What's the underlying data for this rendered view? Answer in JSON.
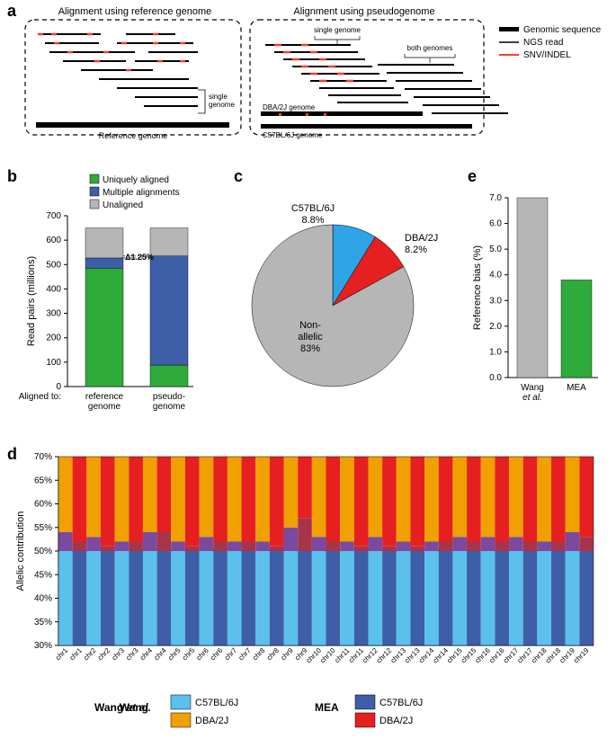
{
  "panel_a": {
    "label": "a",
    "left_title": "Alignment using reference genome",
    "right_title": "Alignment using pseudogenome",
    "ref_label": "Reference genome",
    "single_label": "single genome",
    "both_label": "both genomes",
    "dba_label": "DBA/2J genome",
    "c57_label": "C57BL/6J genome",
    "legend": [
      {
        "color": "#000000",
        "label": "Genomic sequence"
      },
      {
        "color": "#000000",
        "label": "NGS read"
      },
      {
        "color": "#ff3b30",
        "label": "SNV/INDEL"
      }
    ]
  },
  "panel_b": {
    "label": "b",
    "legend": [
      {
        "color": "#2eab3b",
        "label": "Uniquely aligned"
      },
      {
        "color": "#3e5ea8",
        "label": "Multiple alignments"
      },
      {
        "color": "#b6b6b6",
        "label": "Unaligned"
      }
    ],
    "y_label": "Read pairs (millions)",
    "x_label": "Aligned to:",
    "y_max": 700,
    "y_tick": 100,
    "delta_label": "Δ1.25%",
    "bars": [
      {
        "name": "reference\ngenome",
        "segments": [
          {
            "color": "#2eab3b",
            "v": 485
          },
          {
            "color": "#3e5ea8",
            "v": 42
          },
          {
            "color": "#b6b6b6",
            "v": 123
          }
        ]
      },
      {
        "name": "pseudo-\ngenome",
        "segments": [
          {
            "color": "#2eab3b",
            "v": 88
          },
          {
            "color": "#3e5ea8",
            "v": 447
          },
          {
            "color": "#b6b6b6",
            "v": 115
          }
        ]
      }
    ]
  },
  "panel_c": {
    "label": "c",
    "slices": [
      {
        "label": "C57BL/6J",
        "pct": 8.8,
        "color": "#2ea3e6"
      },
      {
        "label": "DBA/2J",
        "pct": 8.2,
        "color": "#e62020"
      },
      {
        "label": "Non-\nallelic",
        "pct": 83.0,
        "color": "#b6b6b6"
      }
    ]
  },
  "panel_d": {
    "label": "d",
    "y_label": "Allelic contribution",
    "y_min": 30,
    "y_max": 70,
    "y_tick": 5,
    "chrs": [
      "chr1",
      "chr1",
      "chr2",
      "chr2",
      "chr3",
      "chr3",
      "chr4",
      "chr4",
      "chr5",
      "chr5",
      "chr6",
      "chr6",
      "chr7",
      "chr7",
      "chr8",
      "chr8",
      "chr9",
      "chr9",
      "chr10",
      "chr10",
      "chr11",
      "chr11",
      "chr12",
      "chr12",
      "chr13",
      "chr13",
      "chr14",
      "chr14",
      "chr15",
      "chr15",
      "chr16",
      "chr16",
      "chr17",
      "chr17",
      "chr18",
      "chr18",
      "chr19",
      "chr19"
    ],
    "wang_c57": "#5bc0eb",
    "wang_dba": "#f0a000",
    "mea_c57": "#3e5ea8",
    "mea_dba": "#e62020",
    "wang_mix": "#7b4aa0",
    "mea_mix": "#a8344a",
    "values_top": [
      54,
      52,
      53,
      51,
      52,
      52,
      54,
      54,
      52,
      51,
      53,
      52,
      52,
      52,
      52,
      51,
      55,
      57,
      53,
      52,
      52,
      51,
      53,
      51,
      52,
      51,
      52,
      52,
      53,
      52,
      53,
      52,
      53,
      52,
      52,
      52,
      54,
      53
    ],
    "legend_wang_label": "Wang et al.",
    "legend_mea_label": "MEA",
    "legend_wang": [
      {
        "c": "#5bc0eb",
        "t": "C57BL/6J"
      },
      {
        "c": "#f0a000",
        "t": "DBA/2J"
      }
    ],
    "legend_mea": [
      {
        "c": "#3e5ea8",
        "t": "C57BL/6J"
      },
      {
        "c": "#e62020",
        "t": "DBA/2J"
      }
    ]
  },
  "panel_e": {
    "label": "e",
    "y_label": "Reference bias (%)",
    "y_max": 7,
    "y_tick": 1,
    "bars": [
      {
        "name": "Wang\net al.",
        "v": 7.0,
        "color": "#b6b6b6",
        "italic": true
      },
      {
        "name": "MEA",
        "v": 3.8,
        "color": "#2eab3b"
      }
    ]
  }
}
